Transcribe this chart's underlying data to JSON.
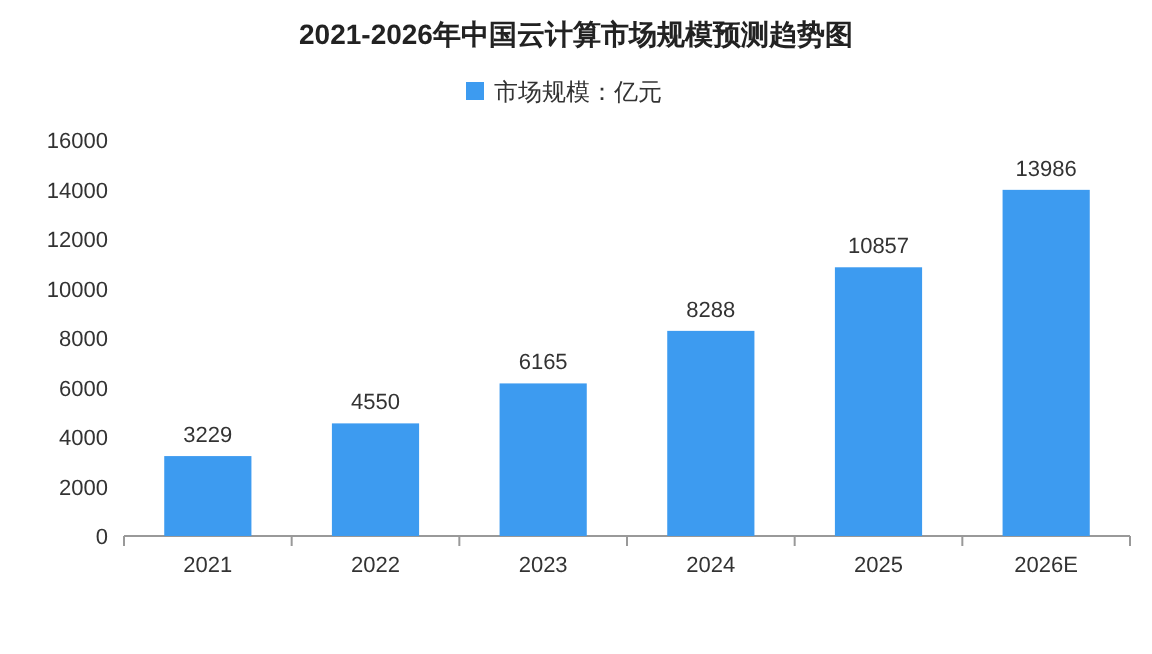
{
  "chart_data": {
    "type": "bar",
    "title": "2021-2026年中国云计算市场规模预测趋势图",
    "categories": [
      "2021",
      "2022",
      "2023",
      "2024",
      "2025",
      "2026E"
    ],
    "series": [
      {
        "name": "市场规模：亿元",
        "color": "#3d9bf0",
        "values": [
          3229,
          4550,
          6165,
          8288,
          10857,
          13986
        ]
      }
    ],
    "ylim": [
      0,
      16000
    ],
    "yticks": [
      0,
      2000,
      4000,
      6000,
      8000,
      10000,
      12000,
      14000,
      16000
    ],
    "data_labels": true,
    "legend": "top",
    "grid": false
  }
}
